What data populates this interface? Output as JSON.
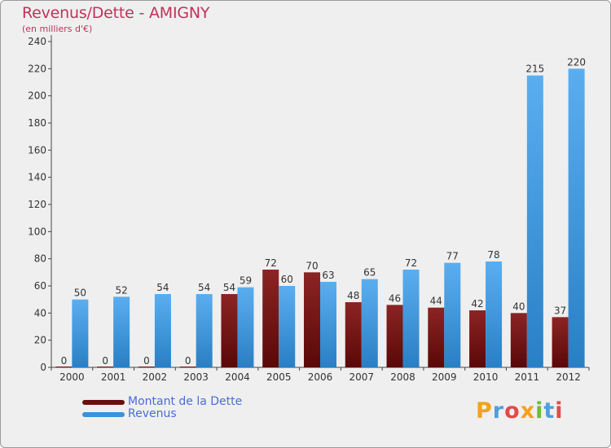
{
  "chart_data": {
    "type": "bar",
    "title": "Revenus/Dette - AMIGNY",
    "subtitle": "(en milliers d'€)",
    "categories": [
      "2000",
      "2001",
      "2002",
      "2003",
      "2004",
      "2005",
      "2006",
      "2007",
      "2008",
      "2009",
      "2010",
      "2011",
      "2012"
    ],
    "series": [
      {
        "name": "Montant de la Dette",
        "color": "#7a1515",
        "values": [
          0,
          0,
          0,
          0,
          54,
          72,
          70,
          48,
          46,
          44,
          42,
          40,
          37
        ]
      },
      {
        "name": "Revenus",
        "color": "#3a92d8",
        "values": [
          50,
          52,
          54,
          54,
          59,
          60,
          63,
          65,
          72,
          77,
          78,
          215,
          220
        ]
      }
    ],
    "ylim": [
      0,
      240
    ],
    "yticks": [
      0,
      20,
      40,
      60,
      80,
      100,
      120,
      140,
      160,
      180,
      200,
      220,
      240
    ],
    "grid": false,
    "legend_position": "bottom-left"
  },
  "logo": {
    "text": "Proxiti",
    "letters": [
      "P",
      "r",
      "o",
      "x",
      "i",
      "t",
      "i"
    ]
  }
}
